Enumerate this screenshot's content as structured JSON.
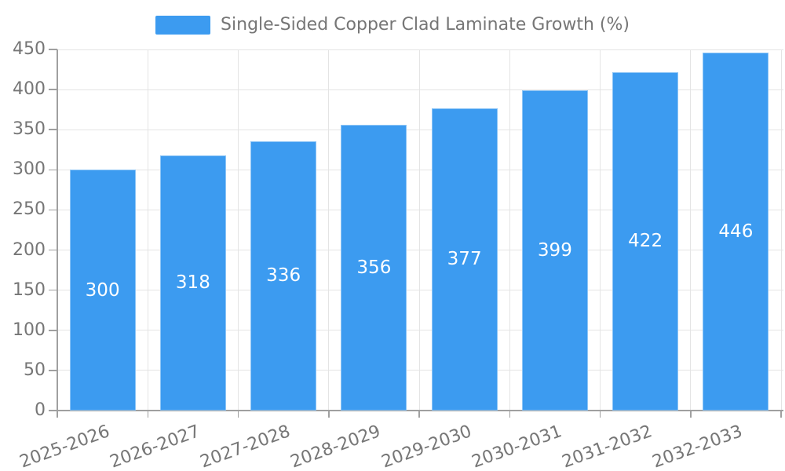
{
  "legend": {
    "position": "top",
    "items": [
      {
        "label": "Single-Sided Copper Clad Laminate Growth (%)",
        "color": "#3c9bf0"
      }
    ]
  },
  "chart_data": {
    "type": "bar",
    "title": "Single-Sided Copper Clad Laminate Growth (%)",
    "series_name": "Single-Sided Copper Clad Laminate Growth (%)",
    "categories": [
      "2025-2026",
      "2026-2027",
      "2027-2028",
      "2028-2029",
      "2029-2030",
      "2030-2031",
      "2031-2032",
      "2032-2033"
    ],
    "values": [
      300,
      318,
      336,
      356,
      377,
      399,
      422,
      446
    ],
    "xlabel": "",
    "ylabel": "",
    "ylim": [
      0,
      450
    ],
    "ytick_interval": 50,
    "yticks": [
      0,
      50,
      100,
      150,
      200,
      250,
      300,
      350,
      400,
      450
    ],
    "grid": true,
    "legend_position": "top",
    "bar_label_position": "inside-middle",
    "x_label_rotation_deg": -20,
    "colors": {
      "bar_fill": "#3c9bf0",
      "bar_value_label": "#ffffff",
      "axis_text": "#767676",
      "axis_line": "#a0a0a0",
      "gridline": "#e4e4e4",
      "background": "#ffffff"
    }
  }
}
